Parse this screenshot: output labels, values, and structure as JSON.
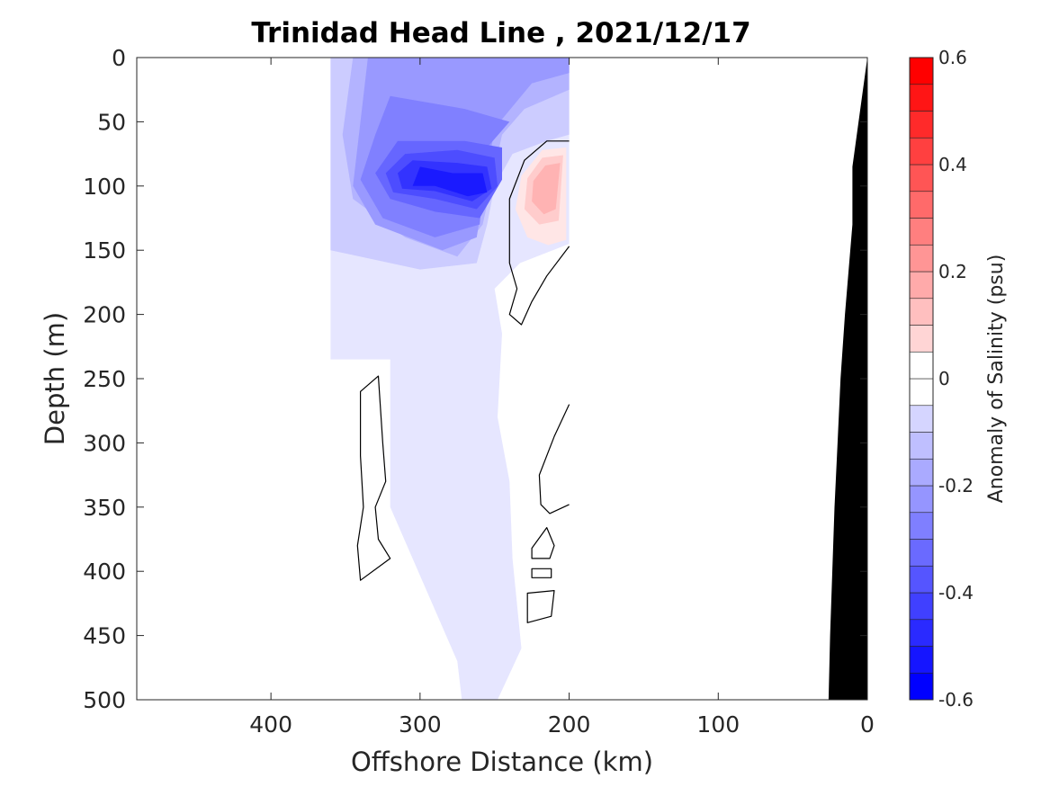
{
  "chart_data": {
    "type": "heatmap",
    "title": "Trinidad Head Line , 2021/12/17",
    "xlabel": "Offshore Distance (km)",
    "ylabel": "Depth (m)",
    "xlim": [
      490,
      0
    ],
    "ylim": [
      0,
      500
    ],
    "x_reversed": true,
    "y_reversed": true,
    "xticks": [
      400,
      300,
      200,
      100,
      0
    ],
    "yticks": [
      0,
      50,
      100,
      150,
      200,
      250,
      300,
      350,
      400,
      450,
      500
    ],
    "colorbar": {
      "label": "Anomaly of Salinity (psu)",
      "range": [
        -0.6,
        0.6
      ],
      "step": 0.05,
      "ticks": [
        0.6,
        0.4,
        0.2,
        0,
        -0.2,
        -0.4,
        -0.6
      ],
      "tick_labels": [
        "0.6",
        "0.4",
        "0.2",
        "0",
        "-0.2",
        "-0.4",
        "-0.6"
      ],
      "colormap": "blue-white-red",
      "neg_color": "#0000ff",
      "pos_color": "#ff0000",
      "zero_color": "#ffffff"
    },
    "data_coverage_km": [
      360,
      200
    ],
    "features": [
      {
        "kind": "contour_fill",
        "level": -0.05,
        "color": "#e6e6ff",
        "points": [
          [
            360,
            0
          ],
          [
            200,
            0
          ],
          [
            200,
            145
          ],
          [
            233,
            160
          ],
          [
            250,
            180
          ],
          [
            245,
            215
          ],
          [
            248,
            280
          ],
          [
            240,
            330
          ],
          [
            238,
            390
          ],
          [
            232,
            460
          ],
          [
            248,
            500
          ],
          [
            272,
            500
          ],
          [
            275,
            470
          ],
          [
            320,
            350
          ],
          [
            320,
            235
          ],
          [
            360,
            235
          ]
        ]
      },
      {
        "kind": "contour_fill",
        "level": -0.1,
        "color": "#ccccff",
        "points": [
          [
            360,
            0
          ],
          [
            200,
            0
          ],
          [
            200,
            60
          ],
          [
            215,
            65
          ],
          [
            238,
            75
          ],
          [
            250,
            100
          ],
          [
            255,
            130
          ],
          [
            262,
            160
          ],
          [
            300,
            165
          ],
          [
            360,
            150
          ]
        ]
      },
      {
        "kind": "contour_fill",
        "level": -0.15,
        "color": "#b3b3ff",
        "points": [
          [
            345,
            0
          ],
          [
            200,
            0
          ],
          [
            200,
            25
          ],
          [
            230,
            40
          ],
          [
            245,
            60
          ],
          [
            258,
            130
          ],
          [
            275,
            155
          ],
          [
            310,
            140
          ],
          [
            345,
            110
          ],
          [
            352,
            60
          ]
        ]
      },
      {
        "kind": "contour_fill",
        "level": -0.2,
        "color": "#9999ff",
        "points": [
          [
            335,
            0
          ],
          [
            200,
            0
          ],
          [
            200,
            12
          ],
          [
            225,
            20
          ],
          [
            250,
            55
          ],
          [
            262,
            140
          ],
          [
            285,
            150
          ],
          [
            330,
            130
          ],
          [
            345,
            100
          ],
          [
            340,
            50
          ]
        ]
      },
      {
        "kind": "contour_fill",
        "level": -0.25,
        "color": "#8080ff",
        "points": [
          [
            320,
            30
          ],
          [
            270,
            40
          ],
          [
            240,
            50
          ],
          [
            255,
            70
          ],
          [
            260,
            130
          ],
          [
            290,
            140
          ],
          [
            325,
            125
          ],
          [
            340,
            95
          ],
          [
            330,
            60
          ]
        ]
      },
      {
        "kind": "contour_fill",
        "level": -0.3,
        "color": "#6666ff",
        "points": [
          [
            315,
            65
          ],
          [
            270,
            65
          ],
          [
            245,
            70
          ],
          [
            245,
            95
          ],
          [
            260,
            125
          ],
          [
            290,
            120
          ],
          [
            320,
            110
          ],
          [
            330,
            90
          ]
        ]
      },
      {
        "kind": "contour_fill",
        "level": -0.35,
        "color": "#4d4dff",
        "points": [
          [
            310,
            75
          ],
          [
            275,
            72
          ],
          [
            250,
            78
          ],
          [
            248,
            100
          ],
          [
            262,
            118
          ],
          [
            290,
            110
          ],
          [
            318,
            105
          ],
          [
            323,
            90
          ]
        ]
      },
      {
        "kind": "contour_fill",
        "level": -0.4,
        "color": "#3333ff",
        "points": [
          [
            305,
            80
          ],
          [
            275,
            82
          ],
          [
            255,
            85
          ],
          [
            252,
            102
          ],
          [
            265,
            112
          ],
          [
            290,
            104
          ],
          [
            312,
            102
          ],
          [
            315,
            90
          ]
        ]
      },
      {
        "kind": "contour_fill",
        "level": -0.45,
        "color": "#1a1aff",
        "points": [
          [
            300,
            85
          ],
          [
            278,
            90
          ],
          [
            258,
            90
          ],
          [
            255,
            105
          ],
          [
            268,
            108
          ],
          [
            290,
            100
          ],
          [
            305,
            100
          ]
        ]
      },
      {
        "kind": "contour_fill",
        "level": 0.05,
        "color": "#ffe6e6",
        "points": [
          [
            202,
            70
          ],
          [
            218,
            72
          ],
          [
            232,
            92
          ],
          [
            236,
            118
          ],
          [
            228,
            140
          ],
          [
            214,
            146
          ],
          [
            202,
            142
          ]
        ]
      },
      {
        "kind": "contour_fill",
        "level": 0.1,
        "color": "#ffcccc",
        "points": [
          [
            204,
            76
          ],
          [
            218,
            78
          ],
          [
            228,
            94
          ],
          [
            230,
            118
          ],
          [
            220,
            130
          ],
          [
            207,
            127
          ]
        ]
      },
      {
        "kind": "contour_fill",
        "level": 0.15,
        "color": "#ffb3b3",
        "points": [
          [
            206,
            82
          ],
          [
            216,
            84
          ],
          [
            224,
            96
          ],
          [
            225,
            112
          ],
          [
            217,
            122
          ],
          [
            209,
            118
          ]
        ]
      },
      {
        "kind": "contour_line",
        "level": 0,
        "points": [
          [
            200,
            65
          ],
          [
            215,
            65
          ],
          [
            230,
            80
          ],
          [
            240,
            110
          ],
          [
            240,
            160
          ],
          [
            235,
            180
          ],
          [
            240,
            200
          ],
          [
            232,
            208
          ],
          [
            225,
            190
          ],
          [
            215,
            170
          ],
          [
            200,
            147
          ]
        ]
      },
      {
        "kind": "contour_line",
        "level": 0,
        "points": [
          [
            340,
            260
          ],
          [
            328,
            248
          ],
          [
            325,
            300
          ],
          [
            323,
            330
          ],
          [
            330,
            350
          ],
          [
            328,
            375
          ],
          [
            320,
            390
          ],
          [
            340,
            407
          ],
          [
            342,
            380
          ],
          [
            338,
            350
          ],
          [
            340,
            310
          ]
        ],
        "closed": true
      },
      {
        "kind": "contour_line",
        "level": 0,
        "points": [
          [
            200,
            270
          ],
          [
            210,
            295
          ],
          [
            220,
            325
          ],
          [
            219,
            348
          ],
          [
            213,
            355
          ],
          [
            200,
            348
          ]
        ]
      },
      {
        "kind": "contour_line",
        "level": 0,
        "points": [
          [
            225,
            382
          ],
          [
            215,
            366
          ],
          [
            210,
            380
          ],
          [
            213,
            390
          ],
          [
            225,
            390
          ]
        ],
        "closed": true
      },
      {
        "kind": "contour_line",
        "level": 0,
        "points": [
          [
            225,
            398
          ],
          [
            212,
            398
          ],
          [
            212,
            405
          ],
          [
            225,
            405
          ]
        ],
        "closed": true
      },
      {
        "kind": "contour_line",
        "level": 0,
        "points": [
          [
            228,
            417
          ],
          [
            210,
            415
          ],
          [
            212,
            435
          ],
          [
            228,
            440
          ]
        ],
        "closed": true
      },
      {
        "kind": "land_mask",
        "color": "#000000",
        "points": [
          [
            0,
            0
          ],
          [
            0,
            500
          ],
          [
            26,
            500
          ],
          [
            25,
            450
          ],
          [
            22,
            350
          ],
          [
            20,
            300
          ],
          [
            18,
            250
          ],
          [
            15,
            200
          ],
          [
            10,
            130
          ],
          [
            10,
            85
          ]
        ]
      }
    ]
  }
}
